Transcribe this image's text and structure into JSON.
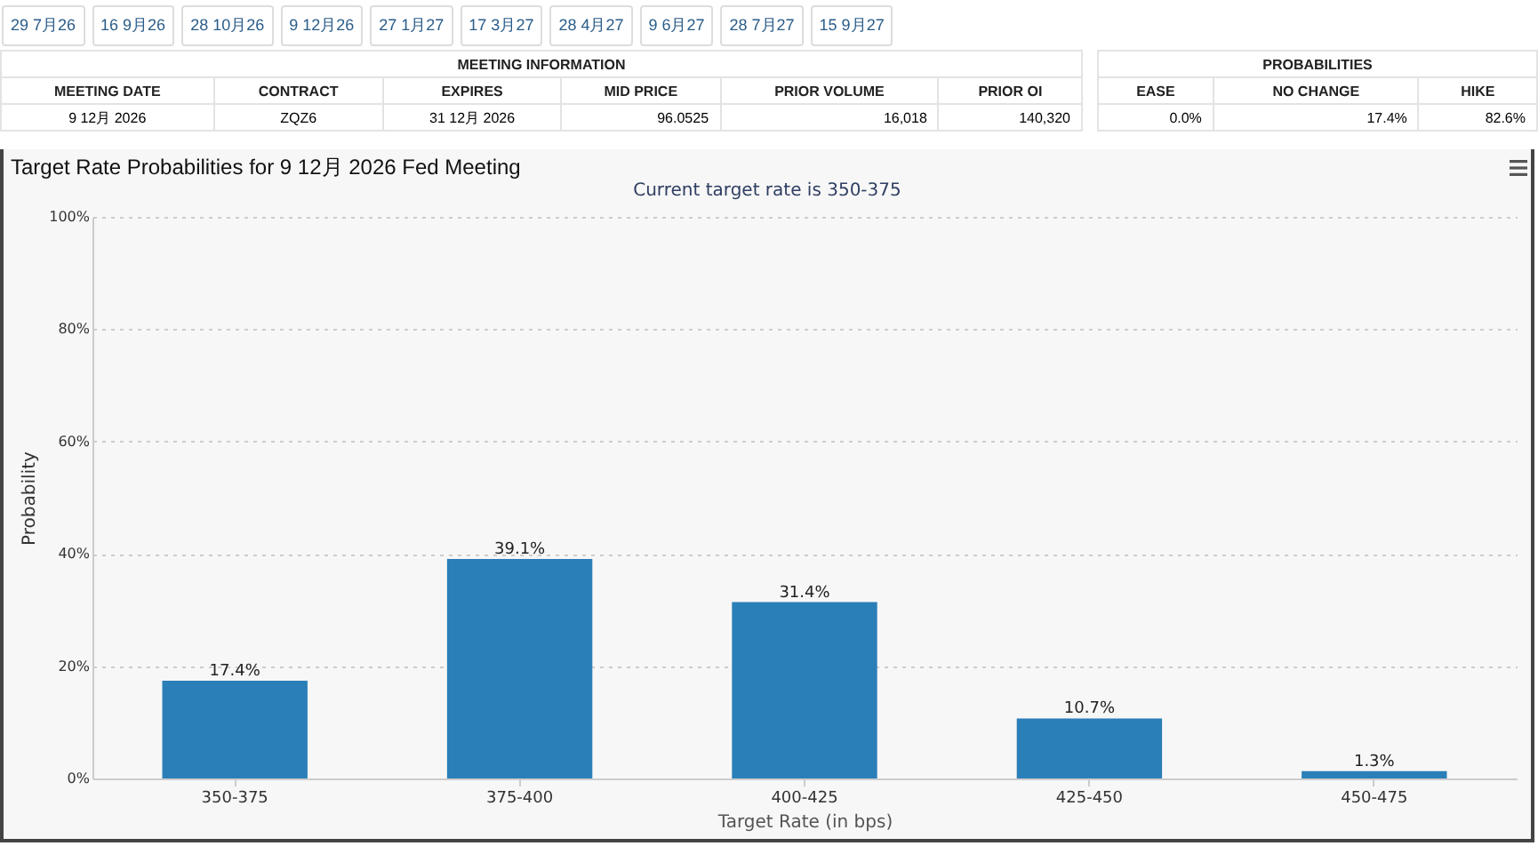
{
  "chart_data": [
    {
      "type": "other",
      "categories": [
        "29 7月26",
        "16 9月26",
        "28 10月26",
        "9 12月26",
        "27 1月27",
        "17 3月27",
        "28 4月27",
        "9 6月27",
        "28 7月27",
        "15 9月27"
      ]
    },
    {
      "type": "other",
      "title": "MEETING INFORMATION",
      "categories": [
        "MEETING DATE",
        "CONTRACT",
        "EXPIRES",
        "MID PRICE",
        "PRIOR VOLUME",
        "PRIOR OI"
      ],
      "annotations": [
        "9 12月 2026",
        "ZQZ6",
        "31 12月 2026",
        "96.0525",
        "16,018",
        "140,320"
      ]
    },
    {
      "type": "other",
      "title": "PROBABILITIES",
      "categories": [
        "EASE",
        "NO CHANGE",
        "HIKE"
      ],
      "annotations": [
        "0.0%",
        "17.4%",
        "82.6%"
      ]
    },
    {
      "type": "bar",
      "title": "Target Rate Probabilities for 9 12月 2026 Fed Meeting",
      "subtitle": "Current target rate is 350-375",
      "xlabel": "Target Rate (in bps)",
      "ylabel": "Probability",
      "categories": [
        "350-375",
        "375-400",
        "400-425",
        "425-450",
        "450-475"
      ],
      "values": [
        17.4,
        39.1,
        31.4,
        10.7,
        1.3
      ],
      "value_labels": [
        "17.4%",
        "39.1%",
        "31.4%",
        "10.7%",
        "1.3%"
      ],
      "color": "#2b7fb8",
      "ylim": [
        0,
        100
      ],
      "yticks": [
        {
          "value": 0,
          "label": "0%"
        },
        {
          "value": 20,
          "label": "20%"
        },
        {
          "value": 40,
          "label": "40%"
        },
        {
          "value": 60,
          "label": "60%"
        },
        {
          "value": 80,
          "label": "80%"
        },
        {
          "value": 100,
          "label": "100%"
        }
      ],
      "grid": "y"
    }
  ]
}
